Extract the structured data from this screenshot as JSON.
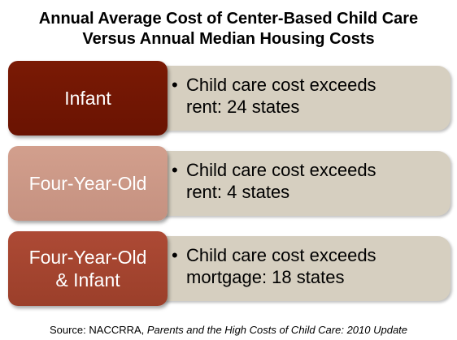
{
  "title": {
    "line1": "Annual Average Cost of Center-Based Child Care",
    "line2": "Versus Annual Median Housing Costs"
  },
  "colors": {
    "infant": "#731603",
    "four_year_old": "#cc9987",
    "four_year_old_and_infant": "#a44530",
    "detail_box": "#d6cfc0"
  },
  "rows": [
    {
      "category_line1": "Infant",
      "category_line2": "",
      "bullet": "•",
      "detail_line1": "Child care cost exceeds",
      "detail_line2": "rent: 24 states"
    },
    {
      "category_line1": "Four-Year-Old",
      "category_line2": "",
      "bullet": "•",
      "detail_line1": "Child care cost exceeds",
      "detail_line2": "rent: 4 states"
    },
    {
      "category_line1": "Four-Year-Old",
      "category_line2": "& Infant",
      "bullet": "•",
      "detail_line1": "Child care cost exceeds",
      "detail_line2": "mortgage: 18 states"
    }
  ],
  "source": {
    "prefix": "Source: NACCRRA, ",
    "publication": "Parents and the High Costs of Child Care: 2010 Update"
  }
}
